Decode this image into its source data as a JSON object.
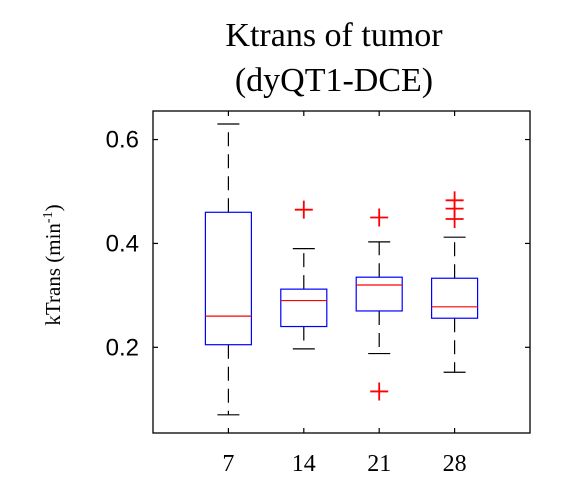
{
  "chart_data": {
    "type": "boxplot",
    "title_lines": [
      "Ktrans of tumor",
      "(dyQT1-DCE)"
    ],
    "ylabel": {
      "main": "kTrans (min",
      "superscript": "-1",
      "suffix": ")"
    },
    "xlabel": "",
    "categories": [
      "7",
      "14",
      "21",
      "28"
    ],
    "ylim": [
      0.035,
      0.655
    ],
    "yticks": [
      0.2,
      0.4,
      0.6
    ],
    "ytick_labels": [
      "0.2",
      "0.4",
      "0.6"
    ],
    "grid": false,
    "colors": {
      "box": "#0000ff",
      "median": "#ff0000",
      "whisker": "#000000",
      "outlier": "#ff0000",
      "axes": "#000000"
    },
    "boxes": [
      {
        "category": "7",
        "whisker_low": 0.07,
        "q1": 0.205,
        "median": 0.26,
        "q3": 0.46,
        "whisker_high": 0.63,
        "outliers": []
      },
      {
        "category": "14",
        "whisker_low": 0.197,
        "q1": 0.24,
        "median": 0.29,
        "q3": 0.312,
        "whisker_high": 0.39,
        "outliers": [
          0.465
        ]
      },
      {
        "category": "21",
        "whisker_low": 0.188,
        "q1": 0.27,
        "median": 0.32,
        "q3": 0.335,
        "whisker_high": 0.403,
        "outliers": [
          0.45,
          0.115
        ]
      },
      {
        "category": "28",
        "whisker_low": 0.152,
        "q1": 0.256,
        "median": 0.278,
        "q3": 0.333,
        "whisker_high": 0.412,
        "outliers": [
          0.447,
          0.467,
          0.483
        ]
      }
    ]
  }
}
